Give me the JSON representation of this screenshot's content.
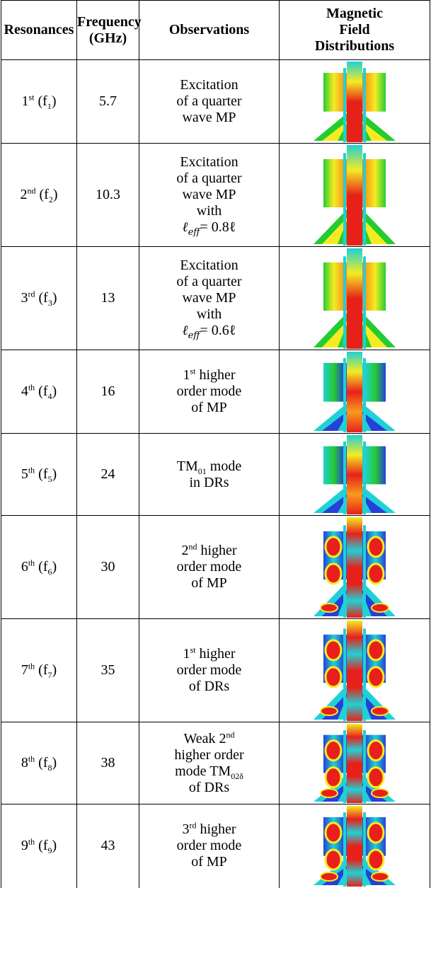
{
  "headers": {
    "resonances": "Resonances",
    "frequency_line1": "Frequency",
    "frequency_line2": "(GHz)",
    "observations": "Observations",
    "field_line1": "Magnetic",
    "field_line2": "Field",
    "field_line3": "Distributions"
  },
  "rows": [
    {
      "ord": "1",
      "sup": "st",
      "sub": "1",
      "freq": "5.7",
      "obs": [
        "Excitation",
        "of a quarter",
        "wave MP"
      ],
      "kind": "low"
    },
    {
      "ord": "2",
      "sup": "nd",
      "sub": "2",
      "freq": "10.3",
      "obs": [
        "Excitation",
        "of a quarter",
        "wave MP",
        "with"
      ],
      "eff": "= 0.8ℓ",
      "kind": "low"
    },
    {
      "ord": "3",
      "sup": "rd",
      "sub": "3",
      "freq": "13",
      "obs": [
        "Excitation",
        "of a quarter",
        "wave MP",
        "with"
      ],
      "eff": "= 0.6ℓ",
      "kind": "low"
    },
    {
      "ord": "4",
      "sup": "th",
      "sub": "4",
      "freq": "16",
      "obs_sup": {
        "pre": "1",
        "sup": "st",
        "post": " higher"
      },
      "obs": [
        "order mode",
        "of MP"
      ],
      "kind": "mid"
    },
    {
      "ord": "5",
      "sup": "th",
      "sub": "5",
      "freq": "24",
      "obs_sub": {
        "pre": "TM",
        "sub": "01",
        "post": " mode"
      },
      "obs": [
        "in DRs"
      ],
      "kind": "mid"
    },
    {
      "ord": "6",
      "sup": "th",
      "sub": "6",
      "freq": "30",
      "obs_sup": {
        "pre": "2",
        "sup": "nd",
        "post": " higher"
      },
      "obs": [
        "order mode",
        "of MP"
      ],
      "kind": "high"
    },
    {
      "ord": "7",
      "sup": "th",
      "sub": "7",
      "freq": "35",
      "obs_sup": {
        "pre": "1",
        "sup": "st",
        "post": " higher"
      },
      "obs": [
        "order mode",
        "of DRs"
      ],
      "kind": "high"
    },
    {
      "ord": "8",
      "sup": "th",
      "sub": "8",
      "freq": "38",
      "obs_sup": {
        "pre": "Weak 2",
        "sup": "nd",
        "post": ""
      },
      "obs": [
        "higher order"
      ],
      "obs_sub2": {
        "pre": "mode TM",
        "sub": "02δ",
        "post": ""
      },
      "obs_tail": [
        "of DRs"
      ],
      "kind": "high"
    },
    {
      "ord": "9",
      "sup": "th",
      "sub": "9",
      "freq": "43",
      "obs_sup": {
        "pre": "3",
        "sup": "rd",
        "post": " higher"
      },
      "obs": [
        "order mode",
        "of MP"
      ],
      "kind": "high"
    }
  ],
  "eff_label": "ℓ",
  "eff_sub": "eff",
  "colors": {
    "red": "#e8201a",
    "orange": "#f89a1c",
    "yellow": "#f4ec22",
    "green": "#24cc30",
    "cyan": "#1fd1d6",
    "blue": "#2740d8"
  }
}
